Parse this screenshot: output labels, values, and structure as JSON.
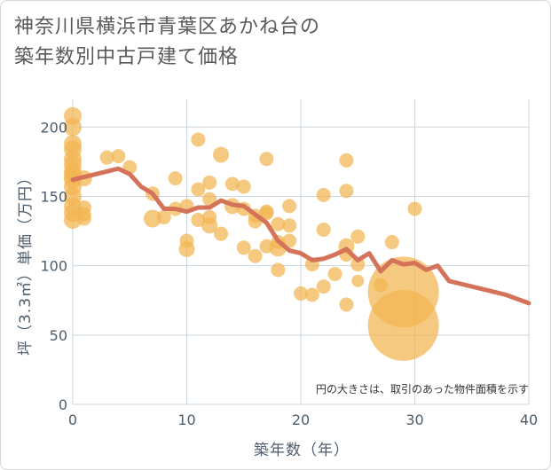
{
  "title_line1": "神奈川県横浜市青葉区あかね台の",
  "title_line2": "築年数別中古戸建て価格",
  "note": "円の大きさは、取引のあった物件面積を示す",
  "colors": {
    "bubble": "#f2b451",
    "line": "#d4735a",
    "grid": "#c9d5de",
    "text": "#4d5d6c"
  },
  "chart_data": {
    "type": "scatter",
    "xlabel": "築年数（年）",
    "ylabel": "坪（3.3㎡）単価（万円）",
    "xlim": [
      0,
      40
    ],
    "ylim": [
      0,
      220
    ],
    "x_ticks": [
      0,
      10,
      20,
      30,
      40
    ],
    "y_ticks": [
      0,
      50,
      100,
      150,
      200
    ],
    "grid": true,
    "scatter": [
      {
        "x": 0,
        "y": 208,
        "s": 10
      },
      {
        "x": 0,
        "y": 200,
        "s": 10
      },
      {
        "x": 0,
        "y": 188,
        "s": 10
      },
      {
        "x": 0,
        "y": 184,
        "s": 10
      },
      {
        "x": 0,
        "y": 177,
        "s": 10
      },
      {
        "x": 0,
        "y": 173,
        "s": 10
      },
      {
        "x": 0,
        "y": 168,
        "s": 10
      },
      {
        "x": 0,
        "y": 165,
        "s": 10
      },
      {
        "x": 0,
        "y": 162,
        "s": 10
      },
      {
        "x": 0,
        "y": 157,
        "s": 10
      },
      {
        "x": 0,
        "y": 150,
        "s": 10
      },
      {
        "x": 0,
        "y": 143,
        "s": 10
      },
      {
        "x": 0,
        "y": 138,
        "s": 10
      },
      {
        "x": 0,
        "y": 133,
        "s": 10
      },
      {
        "x": 1,
        "y": 163,
        "s": 9
      },
      {
        "x": 1,
        "y": 142,
        "s": 8
      },
      {
        "x": 1,
        "y": 137,
        "s": 8
      },
      {
        "x": 1,
        "y": 134,
        "s": 8
      },
      {
        "x": 3,
        "y": 178,
        "s": 8
      },
      {
        "x": 4,
        "y": 179,
        "s": 8
      },
      {
        "x": 5,
        "y": 171,
        "s": 8
      },
      {
        "x": 7,
        "y": 152,
        "s": 8
      },
      {
        "x": 7,
        "y": 134,
        "s": 10
      },
      {
        "x": 8,
        "y": 135,
        "s": 8
      },
      {
        "x": 9,
        "y": 163,
        "s": 8
      },
      {
        "x": 9,
        "y": 141,
        "s": 8
      },
      {
        "x": 10,
        "y": 143,
        "s": 8
      },
      {
        "x": 10,
        "y": 118,
        "s": 8
      },
      {
        "x": 10,
        "y": 112,
        "s": 9
      },
      {
        "x": 11,
        "y": 191,
        "s": 8
      },
      {
        "x": 11,
        "y": 155,
        "s": 8
      },
      {
        "x": 11,
        "y": 133,
        "s": 8
      },
      {
        "x": 12,
        "y": 160,
        "s": 8
      },
      {
        "x": 12,
        "y": 148,
        "s": 8
      },
      {
        "x": 12,
        "y": 135,
        "s": 8
      },
      {
        "x": 12,
        "y": 129,
        "s": 9
      },
      {
        "x": 13,
        "y": 180,
        "s": 9
      },
      {
        "x": 13,
        "y": 123,
        "s": 8
      },
      {
        "x": 14,
        "y": 159,
        "s": 8
      },
      {
        "x": 14,
        "y": 143,
        "s": 9
      },
      {
        "x": 15,
        "y": 157,
        "s": 8
      },
      {
        "x": 15,
        "y": 141,
        "s": 8
      },
      {
        "x": 15,
        "y": 113,
        "s": 8
      },
      {
        "x": 16,
        "y": 136,
        "s": 8
      },
      {
        "x": 16,
        "y": 132,
        "s": 8
      },
      {
        "x": 16,
        "y": 107,
        "s": 8
      },
      {
        "x": 17,
        "y": 177,
        "s": 8
      },
      {
        "x": 17,
        "y": 139,
        "s": 8
      },
      {
        "x": 17,
        "y": 138,
        "s": 8
      },
      {
        "x": 17,
        "y": 114,
        "s": 8
      },
      {
        "x": 18,
        "y": 130,
        "s": 8
      },
      {
        "x": 18,
        "y": 117,
        "s": 8
      },
      {
        "x": 18,
        "y": 113,
        "s": 10
      },
      {
        "x": 18,
        "y": 97,
        "s": 8
      },
      {
        "x": 19,
        "y": 143,
        "s": 8
      },
      {
        "x": 19,
        "y": 129,
        "s": 8
      },
      {
        "x": 19,
        "y": 118,
        "s": 8
      },
      {
        "x": 20,
        "y": 80,
        "s": 8
      },
      {
        "x": 21,
        "y": 101,
        "s": 8
      },
      {
        "x": 21,
        "y": 79,
        "s": 8
      },
      {
        "x": 22,
        "y": 151,
        "s": 8
      },
      {
        "x": 22,
        "y": 126,
        "s": 8
      },
      {
        "x": 22,
        "y": 85,
        "s": 8
      },
      {
        "x": 23,
        "y": 94,
        "s": 8
      },
      {
        "x": 24,
        "y": 176,
        "s": 8
      },
      {
        "x": 24,
        "y": 154,
        "s": 8
      },
      {
        "x": 24,
        "y": 114,
        "s": 9
      },
      {
        "x": 24,
        "y": 108,
        "s": 8
      },
      {
        "x": 24,
        "y": 72,
        "s": 8
      },
      {
        "x": 25,
        "y": 121,
        "s": 8
      },
      {
        "x": 25,
        "y": 101,
        "s": 8
      },
      {
        "x": 25,
        "y": 89,
        "s": 7
      },
      {
        "x": 27,
        "y": 86,
        "s": 8
      },
      {
        "x": 28,
        "y": 117,
        "s": 8
      },
      {
        "x": 29,
        "y": 81,
        "s": 40
      },
      {
        "x": 29,
        "y": 57,
        "s": 40
      },
      {
        "x": 30,
        "y": 141,
        "s": 8
      }
    ],
    "line": [
      {
        "x": 0,
        "y": 162
      },
      {
        "x": 1,
        "y": 164
      },
      {
        "x": 2,
        "y": 166
      },
      {
        "x": 3,
        "y": 168
      },
      {
        "x": 4,
        "y": 170
      },
      {
        "x": 5,
        "y": 166
      },
      {
        "x": 6,
        "y": 157
      },
      {
        "x": 7,
        "y": 152
      },
      {
        "x": 8,
        "y": 141
      },
      {
        "x": 9,
        "y": 141
      },
      {
        "x": 10,
        "y": 139
      },
      {
        "x": 11,
        "y": 142
      },
      {
        "x": 12,
        "y": 142
      },
      {
        "x": 13,
        "y": 147
      },
      {
        "x": 14,
        "y": 144
      },
      {
        "x": 15,
        "y": 143
      },
      {
        "x": 16,
        "y": 137
      },
      {
        "x": 17,
        "y": 131
      },
      {
        "x": 18,
        "y": 118
      },
      {
        "x": 19,
        "y": 111
      },
      {
        "x": 20,
        "y": 109
      },
      {
        "x": 21,
        "y": 104
      },
      {
        "x": 22,
        "y": 105
      },
      {
        "x": 23,
        "y": 108
      },
      {
        "x": 24,
        "y": 112
      },
      {
        "x": 25,
        "y": 104
      },
      {
        "x": 26,
        "y": 109
      },
      {
        "x": 27,
        "y": 96
      },
      {
        "x": 28,
        "y": 104
      },
      {
        "x": 29,
        "y": 101
      },
      {
        "x": 30,
        "y": 102
      },
      {
        "x": 31,
        "y": 97
      },
      {
        "x": 32,
        "y": 100
      },
      {
        "x": 33,
        "y": 89
      },
      {
        "x": 34,
        "y": 87
      },
      {
        "x": 35,
        "y": 85
      },
      {
        "x": 36,
        "y": 83
      },
      {
        "x": 37,
        "y": 81
      },
      {
        "x": 38,
        "y": 79
      },
      {
        "x": 39,
        "y": 76
      },
      {
        "x": 40,
        "y": 73
      }
    ]
  }
}
